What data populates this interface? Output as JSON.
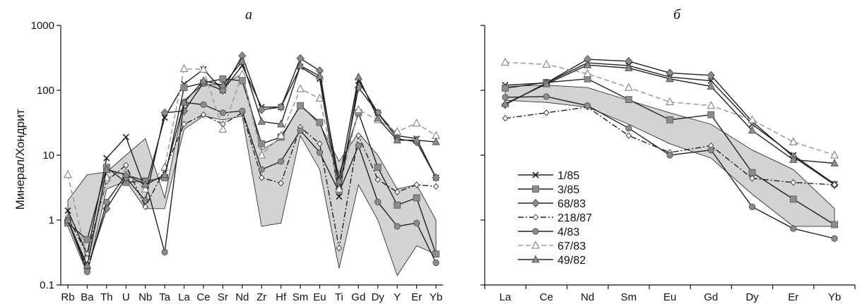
{
  "chart_data": [
    {
      "type": "line",
      "title": "а",
      "ylabel": "Минерал/Хондрит",
      "xlabel": "",
      "yscale": "log",
      "ylim": [
        0.1,
        1000
      ],
      "ytick_labels": [
        "0.1",
        "1",
        "10",
        "100",
        "1000"
      ],
      "categories": [
        "Rb",
        "Ba",
        "Th",
        "U",
        "Nb",
        "Ta",
        "La",
        "Ce",
        "Sr",
        "Nd",
        "Zr",
        "Hf",
        "Sm",
        "Eu",
        "Ti",
        "Gd",
        "Dy",
        "Y",
        "Er",
        "Yb"
      ],
      "band": {
        "upper": [
          2.0,
          5.0,
          5.5,
          10,
          18,
          2.2,
          70,
          125,
          120,
          180,
          12,
          18,
          60,
          30,
          8,
          22,
          10,
          3,
          3.5,
          1.0
        ],
        "lower": [
          0.8,
          0.15,
          3.0,
          4.0,
          1.5,
          1.5,
          25,
          40,
          35,
          40,
          0.8,
          0.9,
          20,
          6,
          0.18,
          3.5,
          1.0,
          0.14,
          0.4,
          0.3
        ]
      },
      "series": [
        {
          "name": "1/85",
          "values": [
            1.4,
            0.3,
            9,
            19,
            3,
            38,
            125,
            210,
            100,
            240,
            55,
            55,
            230,
            150,
            2.3,
            140,
            45,
            20,
            18,
            4.5
          ]
        },
        {
          "name": "3/85",
          "values": [
            0.9,
            0.5,
            6.5,
            3.8,
            4.0,
            4.5,
            110,
            130,
            150,
            140,
            15,
            19,
            58,
            32,
            5.0,
            45,
            6.5,
            1.7,
            2.2,
            0.3
          ]
        },
        {
          "name": "68/83",
          "values": [
            1.0,
            0.18,
            1.5,
            4.5,
            2.0,
            45,
            48,
            130,
            100,
            340,
            50,
            55,
            310,
            200,
            3.0,
            110,
            45,
            18,
            16,
            4.5
          ]
        },
        {
          "name": "218/87",
          "values": [
            1.1,
            0.3,
            4.0,
            7.0,
            1.6,
            6.0,
            30,
            42,
            30,
            45,
            4.5,
            3.7,
            27,
            15,
            0.37,
            20,
            4.2,
            2.7,
            3.5,
            3.3
          ]
        },
        {
          "name": "4/83",
          "values": [
            1.0,
            0.16,
            1.9,
            5.0,
            4.0,
            0.32,
            65,
            60,
            45,
            48,
            6.0,
            8.0,
            24,
            11,
            2.7,
            14,
            1.9,
            0.8,
            0.9,
            0.22
          ]
        },
        {
          "name": "67/83",
          "values": [
            5.0,
            0.25,
            4.5,
            5.5,
            3.0,
            6.5,
            215,
            210,
            25,
            175,
            10,
            20,
            105,
            75,
            3.0,
            50,
            35,
            23,
            31,
            20
          ]
        },
        {
          "name": "49/82",
          "values": [
            1.0,
            0.2,
            6.0,
            5.0,
            3.5,
            5.0,
            65,
            140,
            120,
            280,
            33,
            30,
            240,
            165,
            4.0,
            160,
            37,
            17,
            17,
            16
          ]
        }
      ]
    },
    {
      "type": "line",
      "title": "б",
      "categories": [
        "La",
        "Ce",
        "Nd",
        "Sm",
        "Eu",
        "Gd",
        "Dy",
        "Er",
        "Yb"
      ],
      "band": {
        "upper": [
          115,
          120,
          110,
          70,
          45,
          30,
          12,
          6.0,
          1.5
        ],
        "lower": [
          70,
          65,
          55,
          30,
          15,
          9,
          2.5,
          0.8,
          0.8
        ]
      },
      "series": [
        {
          "name": "1/85",
          "values": [
            120,
            130,
            265,
            240,
            160,
            140,
            30,
            10,
            3.6
          ]
        },
        {
          "name": "3/85",
          "values": [
            108,
            132,
            150,
            72,
            35,
            42,
            5.4,
            2.1,
            0.85
          ]
        },
        {
          "name": "68/83",
          "values": [
            60,
            130,
            300,
            280,
            185,
            170,
            33,
            9.5,
            3.5
          ]
        },
        {
          "name": "218/87",
          "values": [
            37,
            45,
            55,
            20,
            11,
            14,
            4.4,
            3.8,
            3.5
          ]
        },
        {
          "name": "4/83",
          "values": [
            78,
            80,
            58,
            26,
            10,
            12,
            1.6,
            0.74,
            0.52
          ]
        },
        {
          "name": "67/83",
          "values": [
            270,
            250,
            180,
            110,
            66,
            58,
            35,
            16,
            10
          ]
        },
        {
          "name": "49/82",
          "values": [
            62,
            125,
            245,
            220,
            150,
            115,
            24,
            8.5,
            7.5
          ]
        }
      ]
    }
  ],
  "legend_entries": [
    "1/85",
    "3/85",
    "68/83",
    "218/87",
    "4/83",
    "67/83",
    "49/82"
  ],
  "colors": {
    "band": "#d3d3d3",
    "line": "#222222",
    "marker_gray": "#8c8c8c",
    "dashed": "#9a9a9a"
  }
}
